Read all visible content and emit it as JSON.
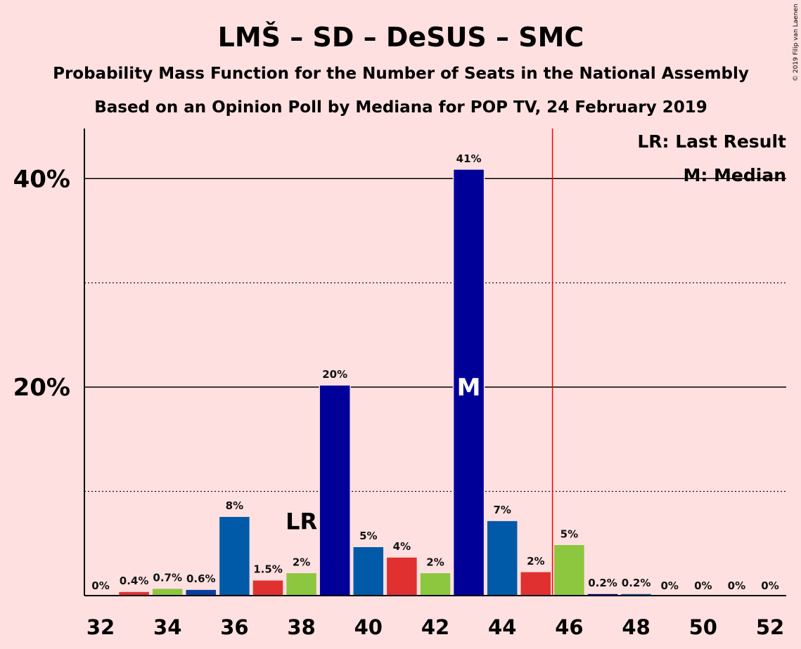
{
  "chart_data": {
    "type": "bar",
    "title": "LMŠ – SD – DeSUS – SMC",
    "subtitle": "Probability Mass Function for the Number of Seats in the National Assembly",
    "subtitle2": "Based on an Opinion Poll by Mediana for POP TV, 24 February 2019",
    "copyright": "© 2019 Filip van Laenen",
    "x": [
      32,
      33,
      34,
      35,
      36,
      37,
      38,
      39,
      40,
      41,
      42,
      43,
      44,
      45,
      46,
      47,
      48,
      49,
      50,
      51,
      52
    ],
    "values": [
      0,
      0.4,
      0.7,
      0.6,
      7.6,
      1.5,
      2.2,
      20.2,
      4.7,
      3.7,
      2.2,
      40.9,
      7.2,
      2.3,
      4.9,
      0.2,
      0.2,
      0,
      0,
      0,
      0
    ],
    "labels": [
      "0%",
      "0.4%",
      "0.7%",
      "0.6%",
      "8%",
      "1.5%",
      "2%",
      "20%",
      "5%",
      "4%",
      "2%",
      "41%",
      "7%",
      "2%",
      "5%",
      "0.2%",
      "0.2%",
      "0%",
      "0%",
      "0%",
      "0%"
    ],
    "colors": [
      "#e03030",
      "#e03030",
      "#8dc63f",
      "#0a3f9e",
      "#005aa8",
      "#e03030",
      "#8dc63f",
      "#000099",
      "#005aa8",
      "#e03030",
      "#8dc63f",
      "#000099",
      "#005aa8",
      "#e03030",
      "#8dc63f",
      "#000099",
      "#005aa8",
      "#e03030",
      "#8dc63f",
      "#000099",
      "#005aa8"
    ],
    "x_ticks": [
      "32",
      "34",
      "36",
      "38",
      "40",
      "42",
      "44",
      "46",
      "48",
      "50",
      "52"
    ],
    "y_ticks": [
      "20%",
      "40%"
    ],
    "ylim": [
      0,
      44.8
    ],
    "solid_gridlines": [
      20,
      40
    ],
    "dotted_gridlines": [
      10,
      30
    ],
    "last_result_seat": 38,
    "last_result_marker": "LR",
    "median_seat": 43,
    "median_marker": "M",
    "majority_line_after_seat": 45,
    "majority_line_color": "#ff0000",
    "legend": [
      "LR: Last Result",
      "M: Median"
    ],
    "legend_placement": "top-right"
  }
}
